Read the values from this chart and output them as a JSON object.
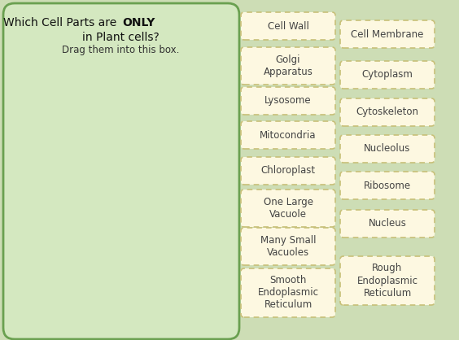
{
  "bg_color": "#cdddb5",
  "outer_bg": "#cfc5d8",
  "left_box_color": "#d4e8c0",
  "card_fill": "#fdf8e1",
  "card_edge": "#c8c078",
  "left_items": [
    "Cell Wall",
    "Golgi\nApparatus",
    "Lysosome",
    "Mitocondria",
    "Chloroplast",
    "One Large\nVacuole",
    "Many Small\nVacuoles",
    "Smooth\nEndoplasmic\nReticulum"
  ],
  "right_items": [
    "Cell Membrane",
    "Cytoplasm",
    "Cytoskeleton",
    "Nucleolus",
    "Ribosome",
    "Nucleus",
    "Rough\nEndoplasmic\nReticulum"
  ]
}
